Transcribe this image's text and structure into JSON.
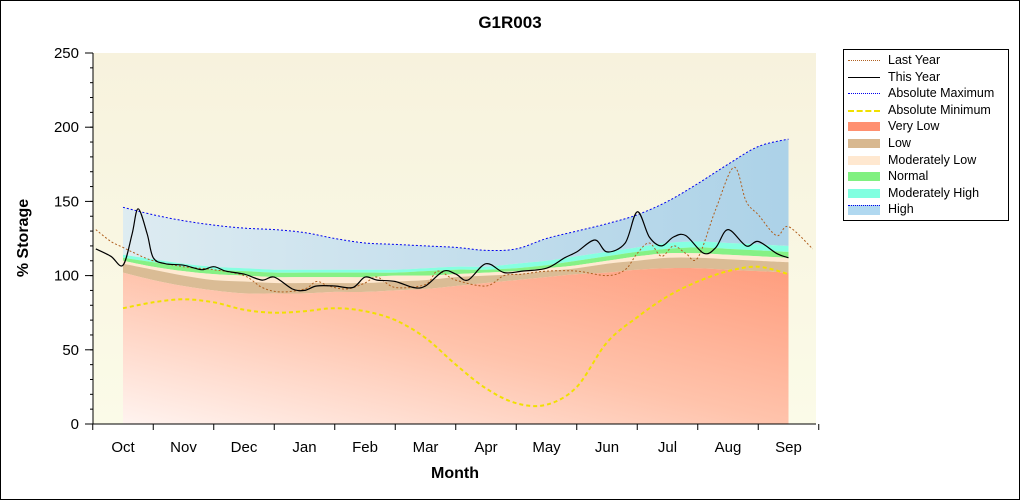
{
  "chart_data": {
    "type": "area",
    "title": "G1R003",
    "xlabel": "Month",
    "ylabel": "% Storage",
    "ylim": [
      0,
      250
    ],
    "yticks": [
      0,
      50,
      100,
      150,
      200,
      250
    ],
    "categories": [
      "Oct",
      "Nov",
      "Dec",
      "Jan",
      "Feb",
      "Mar",
      "Apr",
      "May",
      "Jun",
      "Jul",
      "Aug",
      "Sep"
    ],
    "legend_position": "right",
    "bands_x": [
      0,
      0.5,
      1,
      1.5,
      2,
      2.5,
      3,
      3.5,
      4,
      4.5,
      5,
      5.5,
      6,
      6.5,
      7,
      7.5,
      8,
      8.5,
      9,
      9.5,
      10,
      10.5,
      11
    ],
    "bands": [
      {
        "name": "Very Low",
        "color": "#ff9070",
        "upper": [
          102,
          97,
          93,
          90,
          88,
          88,
          88,
          89,
          89,
          90,
          91,
          93,
          95,
          97,
          99,
          101,
          102,
          104,
          105,
          105,
          104,
          103,
          102
        ]
      },
      {
        "name": "Low",
        "color": "#d8b890",
        "upper": [
          108,
          104,
          100,
          97,
          96,
          95,
          95,
          95,
          95,
          96,
          97,
          99,
          100,
          101,
          103,
          105,
          108,
          110,
          112,
          112,
          111,
          110,
          109
        ]
      },
      {
        "name": "Moderately Low",
        "color": "#ffe8d0",
        "upper": [
          110,
          106,
          103,
          101,
          100,
          99,
          99,
          99,
          99,
          100,
          100,
          101,
          102,
          103,
          105,
          107,
          110,
          113,
          115,
          115,
          114,
          113,
          112
        ]
      },
      {
        "name": "Normal",
        "color": "#80f080",
        "upper": [
          112,
          109,
          106,
          104,
          103,
          102,
          102,
          102,
          102,
          102,
          103,
          104,
          104,
          105,
          107,
          110,
          113,
          116,
          118,
          119,
          118,
          117,
          116
        ]
      },
      {
        "name": "Moderately High",
        "color": "#80ffe0",
        "upper": [
          114,
          111,
          108,
          106,
          105,
          104,
          104,
          104,
          104,
          104,
          105,
          106,
          106,
          108,
          110,
          113,
          116,
          119,
          122,
          123,
          122,
          121,
          120
        ]
      },
      {
        "name": "High",
        "color": "#b0d8f0",
        "upper": [
          146,
          141,
          137,
          134,
          132,
          131,
          129,
          125,
          122,
          121,
          120,
          119,
          117,
          118,
          125,
          130,
          135,
          141,
          150,
          162,
          175,
          187,
          192
        ]
      }
    ],
    "series": [
      {
        "name": "Last Year",
        "color": "#b06020",
        "style": "dotted",
        "x": [
          -0.45,
          -0.2,
          0,
          0.2,
          0.5,
          1,
          1.5,
          2,
          2.3,
          2.6,
          3,
          3.2,
          3.4,
          3.7,
          4,
          4.2,
          4.5,
          5,
          5.2,
          5.5,
          6,
          6.3,
          6.6,
          7,
          7.5,
          8,
          8.3,
          8.5,
          8.7,
          8.9,
          9.1,
          9.3,
          9.5,
          9.8,
          10.1,
          10.3,
          10.5,
          10.8,
          11,
          11.4
        ],
        "y": [
          131,
          123,
          119,
          115,
          110,
          106,
          104,
          100,
          92,
          89,
          91,
          96,
          93,
          91,
          95,
          99,
          92,
          94,
          103,
          97,
          93,
          100,
          101,
          103,
          103,
          100,
          104,
          115,
          122,
          113,
          120,
          115,
          112,
          145,
          173,
          150,
          141,
          127,
          133,
          118
        ]
      },
      {
        "name": "This Year",
        "color": "#000000",
        "style": "solid",
        "x": [
          -0.45,
          -0.2,
          0,
          0.15,
          0.25,
          0.4,
          0.5,
          0.7,
          1,
          1.3,
          1.5,
          1.7,
          2,
          2.3,
          2.5,
          2.8,
          3,
          3.2,
          3.5,
          3.8,
          4,
          4.2,
          4.5,
          4.8,
          5,
          5.3,
          5.5,
          5.7,
          6,
          6.3,
          6.6,
          7,
          7.3,
          7.5,
          7.8,
          8,
          8.3,
          8.5,
          8.7,
          8.9,
          9.1,
          9.3,
          9.6,
          9.8,
          10,
          10.3,
          10.5,
          10.8,
          11
        ],
        "y": [
          118,
          113,
          107,
          128,
          145,
          128,
          112,
          108,
          107,
          104,
          106,
          103,
          101,
          97,
          99,
          91,
          90,
          93,
          93,
          92,
          99,
          97,
          96,
          92,
          93,
          103,
          101,
          97,
          108,
          102,
          103,
          105,
          112,
          116,
          124,
          116,
          122,
          143,
          126,
          120,
          126,
          127,
          115,
          119,
          131,
          120,
          123,
          115,
          112
        ]
      },
      {
        "name": "Absolute Maximum",
        "color": "#0000ee",
        "style": "dotted",
        "x": [
          0,
          0.5,
          1,
          1.5,
          2,
          2.5,
          3,
          3.5,
          4,
          4.5,
          5,
          5.5,
          6,
          6.5,
          7,
          7.5,
          8,
          8.5,
          9,
          9.5,
          10,
          10.5,
          11
        ],
        "y": [
          146,
          141,
          137,
          134,
          132,
          131,
          129,
          125,
          122,
          121,
          120,
          119,
          117,
          118,
          125,
          130,
          135,
          141,
          150,
          162,
          175,
          187,
          192
        ]
      },
      {
        "name": "Absolute Minimum",
        "color": "#f0e000",
        "style": "dashed",
        "x": [
          0,
          0.5,
          1,
          1.5,
          2,
          2.5,
          3,
          3.5,
          4,
          4.5,
          5,
          5.5,
          6,
          6.5,
          7,
          7.5,
          8,
          8.5,
          9,
          9.5,
          10,
          10.5,
          11
        ],
        "y": [
          78,
          82,
          84,
          82,
          77,
          75,
          76,
          78,
          76,
          70,
          58,
          40,
          24,
          14,
          13,
          25,
          55,
          72,
          86,
          96,
          103,
          106,
          101
        ]
      }
    ],
    "legend": [
      "Last Year",
      "This Year",
      "Absolute Maximum",
      "Absolute Minimum",
      "Very Low",
      "Low",
      "Moderately Low",
      "Normal",
      "Moderately High",
      "High"
    ]
  }
}
